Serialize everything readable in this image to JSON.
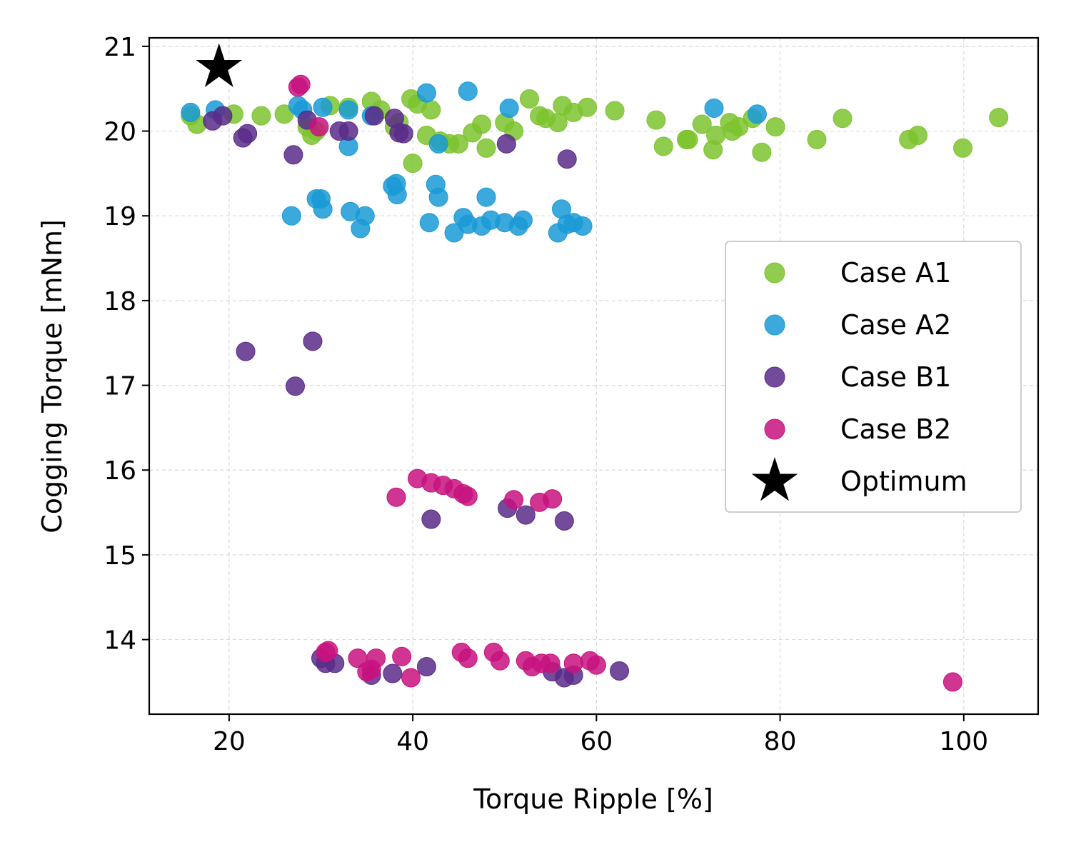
{
  "chart_data": {
    "type": "scatter",
    "title": "",
    "xlabel": "Torque Ripple [%]",
    "ylabel": "Cogging Torque [mNm]",
    "xlim": [
      11.3,
      108.1
    ],
    "ylim": [
      13.12,
      21.1
    ],
    "xticks": [
      20,
      40,
      60,
      80,
      100
    ],
    "yticks": [
      14,
      15,
      16,
      17,
      18,
      19,
      20,
      21
    ],
    "grid": true,
    "legend_position": "center-right",
    "series": [
      {
        "name": "Case A1",
        "color": "#7dc32e",
        "marker": "circle",
        "points": [
          [
            15.8,
            20.18
          ],
          [
            16.5,
            20.08
          ],
          [
            20.5,
            20.2
          ],
          [
            23.5,
            20.18
          ],
          [
            26.0,
            20.2
          ],
          [
            28.5,
            20.05
          ],
          [
            29.0,
            19.95
          ],
          [
            29.5,
            20.0
          ],
          [
            31.0,
            20.3
          ],
          [
            33.0,
            20.28
          ],
          [
            35.5,
            20.35
          ],
          [
            36.5,
            20.25
          ],
          [
            38.0,
            20.05
          ],
          [
            38.5,
            20.1
          ],
          [
            39.8,
            20.38
          ],
          [
            40.5,
            20.32
          ],
          [
            40.0,
            19.62
          ],
          [
            41.5,
            19.95
          ],
          [
            42.0,
            20.25
          ],
          [
            43.0,
            19.88
          ],
          [
            44.0,
            19.85
          ],
          [
            45.0,
            19.85
          ],
          [
            46.5,
            19.98
          ],
          [
            47.5,
            20.08
          ],
          [
            48.0,
            19.8
          ],
          [
            50.0,
            20.1
          ],
          [
            51.0,
            20.0
          ],
          [
            52.7,
            20.38
          ],
          [
            53.8,
            20.18
          ],
          [
            54.5,
            20.15
          ],
          [
            55.8,
            20.1
          ],
          [
            56.3,
            20.3
          ],
          [
            57.5,
            20.22
          ],
          [
            59.0,
            20.28
          ],
          [
            62.0,
            20.24
          ],
          [
            66.5,
            20.13
          ],
          [
            67.3,
            19.82
          ],
          [
            69.8,
            19.9
          ],
          [
            70.0,
            19.9
          ],
          [
            71.5,
            20.08
          ],
          [
            72.7,
            19.78
          ],
          [
            73.0,
            19.95
          ],
          [
            74.5,
            20.1
          ],
          [
            74.8,
            20.0
          ],
          [
            75.5,
            20.05
          ],
          [
            77.0,
            20.15
          ],
          [
            78.0,
            19.75
          ],
          [
            79.5,
            20.05
          ],
          [
            84.0,
            19.9
          ],
          [
            86.8,
            20.15
          ],
          [
            94.0,
            19.9
          ],
          [
            95.0,
            19.95
          ],
          [
            99.9,
            19.8
          ],
          [
            103.8,
            20.16
          ]
        ]
      },
      {
        "name": "Case A2",
        "color": "#1a9ad6",
        "marker": "circle",
        "points": [
          [
            15.8,
            20.22
          ],
          [
            18.5,
            20.25
          ],
          [
            27.5,
            20.3
          ],
          [
            28.0,
            20.25
          ],
          [
            30.2,
            20.28
          ],
          [
            33.0,
            20.25
          ],
          [
            35.5,
            20.18
          ],
          [
            33.0,
            19.82
          ],
          [
            41.5,
            20.45
          ],
          [
            42.8,
            19.85
          ],
          [
            46.0,
            20.47
          ],
          [
            50.5,
            20.27
          ],
          [
            72.8,
            20.27
          ],
          [
            77.5,
            20.2
          ],
          [
            26.8,
            19.0
          ],
          [
            29.5,
            19.2
          ],
          [
            30.0,
            19.2
          ],
          [
            30.2,
            19.08
          ],
          [
            33.2,
            19.05
          ],
          [
            34.3,
            18.85
          ],
          [
            34.8,
            19.0
          ],
          [
            37.8,
            19.35
          ],
          [
            38.2,
            19.38
          ],
          [
            38.3,
            19.25
          ],
          [
            41.8,
            18.92
          ],
          [
            42.5,
            19.37
          ],
          [
            42.8,
            19.22
          ],
          [
            44.5,
            18.8
          ],
          [
            45.5,
            18.98
          ],
          [
            46.0,
            18.9
          ],
          [
            47.5,
            18.88
          ],
          [
            48.0,
            19.22
          ],
          [
            48.5,
            18.95
          ],
          [
            50.0,
            18.92
          ],
          [
            51.5,
            18.88
          ],
          [
            52.0,
            18.95
          ],
          [
            55.8,
            18.8
          ],
          [
            56.2,
            19.08
          ],
          [
            56.8,
            18.9
          ],
          [
            57.5,
            18.92
          ],
          [
            58.5,
            18.88
          ]
        ]
      },
      {
        "name": "Case B1",
        "color": "#5b2c8a",
        "marker": "circle",
        "points": [
          [
            18.2,
            20.12
          ],
          [
            19.3,
            20.18
          ],
          [
            21.5,
            19.92
          ],
          [
            22.0,
            19.97
          ],
          [
            27.0,
            19.72
          ],
          [
            28.5,
            20.13
          ],
          [
            32.0,
            20.0
          ],
          [
            33.0,
            20.0
          ],
          [
            35.8,
            20.18
          ],
          [
            38.0,
            20.15
          ],
          [
            38.5,
            19.98
          ],
          [
            39.0,
            19.97
          ],
          [
            50.2,
            19.85
          ],
          [
            56.8,
            19.67
          ],
          [
            21.8,
            17.4
          ],
          [
            29.1,
            17.52
          ],
          [
            27.2,
            16.99
          ],
          [
            42.0,
            15.42
          ],
          [
            50.3,
            15.55
          ],
          [
            52.3,
            15.47
          ],
          [
            56.5,
            15.4
          ],
          [
            30.0,
            13.78
          ],
          [
            30.5,
            13.72
          ],
          [
            31.5,
            13.72
          ],
          [
            35.5,
            13.58
          ],
          [
            37.8,
            13.6
          ],
          [
            41.5,
            13.68
          ],
          [
            55.2,
            13.62
          ],
          [
            56.5,
            13.55
          ],
          [
            57.5,
            13.58
          ],
          [
            62.5,
            13.63
          ]
        ]
      },
      {
        "name": "Case B2",
        "color": "#c8127f",
        "marker": "circle",
        "points": [
          [
            27.8,
            20.55
          ],
          [
            27.5,
            20.52
          ],
          [
            29.8,
            20.05
          ],
          [
            38.2,
            15.68
          ],
          [
            40.5,
            15.9
          ],
          [
            42.0,
            15.85
          ],
          [
            43.3,
            15.82
          ],
          [
            44.5,
            15.78
          ],
          [
            45.5,
            15.72
          ],
          [
            46.0,
            15.69
          ],
          [
            51.0,
            15.65
          ],
          [
            53.8,
            15.62
          ],
          [
            55.2,
            15.66
          ],
          [
            30.5,
            13.85
          ],
          [
            30.8,
            13.87
          ],
          [
            34.0,
            13.78
          ],
          [
            35.0,
            13.62
          ],
          [
            35.5,
            13.65
          ],
          [
            36.0,
            13.78
          ],
          [
            38.8,
            13.8
          ],
          [
            39.8,
            13.55
          ],
          [
            45.3,
            13.85
          ],
          [
            46.0,
            13.78
          ],
          [
            48.8,
            13.85
          ],
          [
            49.5,
            13.75
          ],
          [
            52.3,
            13.75
          ],
          [
            53.0,
            13.68
          ],
          [
            54.0,
            13.72
          ],
          [
            55.0,
            13.72
          ],
          [
            57.5,
            13.72
          ],
          [
            59.3,
            13.75
          ],
          [
            60.0,
            13.7
          ],
          [
            98.8,
            13.5
          ]
        ]
      },
      {
        "name": "Optimum",
        "color": "#000000",
        "marker": "star",
        "points": [
          [
            18.9,
            20.75
          ]
        ]
      }
    ]
  }
}
